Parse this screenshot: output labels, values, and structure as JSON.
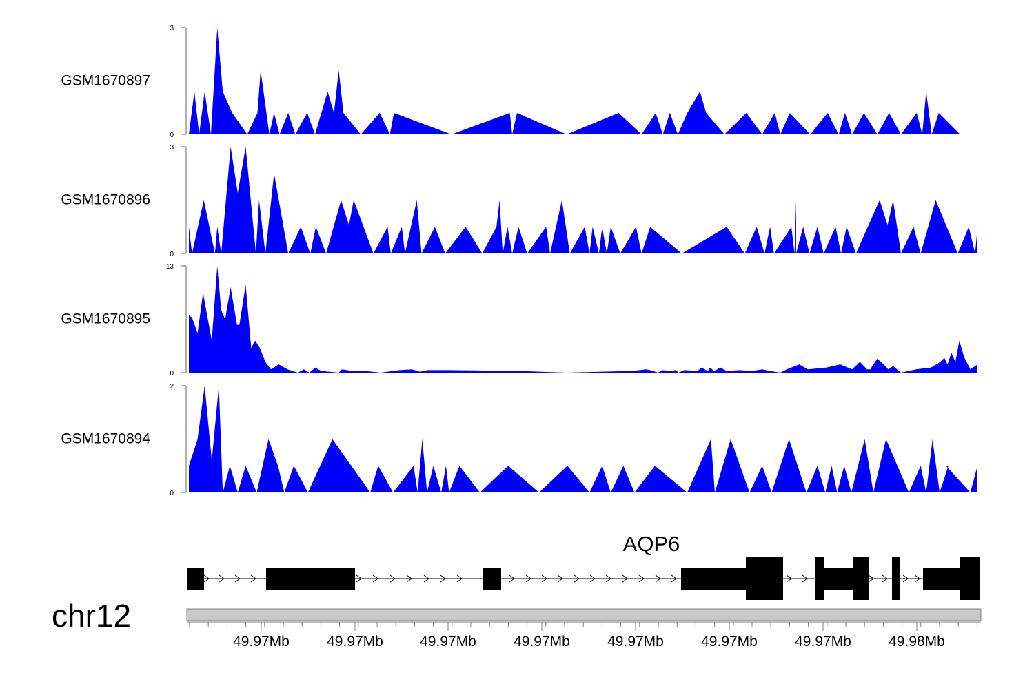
{
  "chart_data": {
    "type": "area",
    "genome": {
      "chromosome": "chr12",
      "gene": "AQP6",
      "strand": "+",
      "x_range_mb": [
        49.9618,
        49.9787
      ],
      "axis_tick_labels": [
        "49.97Mb",
        "49.97Mb",
        "49.97Mb",
        "49.97Mb",
        "49.97Mb",
        "49.97Mb",
        "49.97Mb",
        "49.98Mb"
      ]
    },
    "colors": {
      "fill": "#0000ff",
      "gene": "#000000",
      "ideogram": "#c8c8c8"
    },
    "tracks": [
      {
        "name": "GSM1670897",
        "ylim": [
          0,
          3
        ],
        "yticks": [
          "0",
          "3"
        ],
        "points": [
          [
            0,
            0
          ],
          [
            0.007,
            1.2
          ],
          [
            0.013,
            0
          ],
          [
            0.02,
            1.2
          ],
          [
            0.028,
            0
          ],
          [
            0.036,
            3
          ],
          [
            0.043,
            1.2
          ],
          [
            0.055,
            0.6
          ],
          [
            0.074,
            0
          ],
          [
            0.087,
            0.6
          ],
          [
            0.091,
            1.8
          ],
          [
            0.102,
            0
          ],
          [
            0.108,
            0.6
          ],
          [
            0.115,
            0
          ],
          [
            0.126,
            0.6
          ],
          [
            0.135,
            0
          ],
          [
            0.15,
            0.6
          ],
          [
            0.16,
            0
          ],
          [
            0.176,
            1.2
          ],
          [
            0.184,
            0.6
          ],
          [
            0.19,
            1.8
          ],
          [
            0.196,
            0.6
          ],
          [
            0.218,
            0
          ],
          [
            0.242,
            0.6
          ],
          [
            0.255,
            0
          ],
          [
            0.26,
            0.6
          ],
          [
            0.333,
            0
          ],
          [
            0.407,
            0.6
          ],
          [
            0.41,
            0
          ],
          [
            0.416,
            0.6
          ],
          [
            0.479,
            0
          ],
          [
            0.545,
            0.6
          ],
          [
            0.574,
            0
          ],
          [
            0.592,
            0.6
          ],
          [
            0.601,
            0
          ],
          [
            0.61,
            0.6
          ],
          [
            0.62,
            0
          ],
          [
            0.632,
            0.6
          ],
          [
            0.648,
            1.2
          ],
          [
            0.656,
            0.6
          ],
          [
            0.679,
            0
          ],
          [
            0.707,
            0.6
          ],
          [
            0.727,
            0
          ],
          [
            0.743,
            0.6
          ],
          [
            0.75,
            0
          ],
          [
            0.762,
            0.6
          ],
          [
            0.788,
            0
          ],
          [
            0.81,
            0.6
          ],
          [
            0.824,
            0
          ],
          [
            0.832,
            0.6
          ],
          [
            0.841,
            0
          ],
          [
            0.856,
            0.6
          ],
          [
            0.873,
            0
          ],
          [
            0.888,
            0.6
          ],
          [
            0.903,
            0
          ],
          [
            0.923,
            0.6
          ],
          [
            0.93,
            0
          ],
          [
            0.935,
            1.2
          ],
          [
            0.942,
            0
          ],
          [
            0.951,
            0.6
          ],
          [
            0.978,
            0
          ]
        ]
      },
      {
        "name": "GSM1670896",
        "ylim": [
          0,
          3
        ],
        "yticks": [
          "0",
          "3"
        ],
        "points": [
          [
            0,
            0.75
          ],
          [
            0.004,
            0
          ],
          [
            0.019,
            1.5
          ],
          [
            0.033,
            0
          ],
          [
            0.036,
            0.75
          ],
          [
            0.041,
            0
          ],
          [
            0.053,
            3
          ],
          [
            0.062,
            1.7
          ],
          [
            0.072,
            3
          ],
          [
            0.085,
            0
          ],
          [
            0.089,
            1.5
          ],
          [
            0.097,
            0
          ],
          [
            0.108,
            2.25
          ],
          [
            0.126,
            0
          ],
          [
            0.142,
            0.75
          ],
          [
            0.154,
            0
          ],
          [
            0.161,
            0.75
          ],
          [
            0.174,
            0
          ],
          [
            0.193,
            1.5
          ],
          [
            0.203,
            0.8
          ],
          [
            0.209,
            1.5
          ],
          [
            0.234,
            0
          ],
          [
            0.252,
            0.75
          ],
          [
            0.256,
            0
          ],
          [
            0.27,
            0.75
          ],
          [
            0.274,
            0
          ],
          [
            0.289,
            1.5
          ],
          [
            0.295,
            0
          ],
          [
            0.312,
            0.75
          ],
          [
            0.325,
            0
          ],
          [
            0.351,
            0.75
          ],
          [
            0.372,
            0
          ],
          [
            0.39,
            0.75
          ],
          [
            0.394,
            1.5
          ],
          [
            0.398,
            0
          ],
          [
            0.404,
            0.75
          ],
          [
            0.41,
            0
          ],
          [
            0.418,
            0.75
          ],
          [
            0.429,
            0
          ],
          [
            0.453,
            0.75
          ],
          [
            0.458,
            0
          ],
          [
            0.473,
            1.5
          ],
          [
            0.483,
            0
          ],
          [
            0.502,
            0.75
          ],
          [
            0.508,
            0
          ],
          [
            0.512,
            0.75
          ],
          [
            0.52,
            0
          ],
          [
            0.524,
            0.75
          ],
          [
            0.53,
            0
          ],
          [
            0.535,
            0.75
          ],
          [
            0.547,
            0
          ],
          [
            0.567,
            0.75
          ],
          [
            0.574,
            0
          ],
          [
            0.585,
            0.75
          ],
          [
            0.625,
            0
          ],
          [
            0.682,
            0.75
          ],
          [
            0.705,
            0
          ],
          [
            0.72,
            0.75
          ],
          [
            0.73,
            0
          ],
          [
            0.737,
            0.75
          ],
          [
            0.742,
            0
          ],
          [
            0.764,
            0.75
          ],
          [
            0.768,
            0
          ],
          [
            0.77,
            1.5
          ],
          [
            0.77,
            0
          ],
          [
            0.779,
            0.75
          ],
          [
            0.787,
            0
          ],
          [
            0.797,
            0.75
          ],
          [
            0.805,
            0
          ],
          [
            0.82,
            0.75
          ],
          [
            0.827,
            0
          ],
          [
            0.834,
            0.75
          ],
          [
            0.846,
            0
          ],
          [
            0.876,
            1.5
          ],
          [
            0.886,
            0.8
          ],
          [
            0.893,
            1.5
          ],
          [
            0.903,
            0
          ],
          [
            0.919,
            0.75
          ],
          [
            0.928,
            0
          ],
          [
            0.947,
            1.5
          ],
          [
            0.975,
            0
          ],
          [
            0.989,
            0.75
          ],
          [
            0.997,
            0
          ],
          [
            1,
            0.75
          ],
          [
            1,
            0
          ]
        ]
      },
      {
        "name": "GSM1670895",
        "ylim": [
          0,
          13
        ],
        "yticks": [
          "0",
          "13"
        ],
        "points": [
          [
            0,
            7
          ],
          [
            0.004,
            6.7
          ],
          [
            0.011,
            4.8
          ],
          [
            0.018,
            9.7
          ],
          [
            0.029,
            3.9
          ],
          [
            0.036,
            13
          ],
          [
            0.041,
            7.6
          ],
          [
            0.046,
            6.5
          ],
          [
            0.053,
            10.4
          ],
          [
            0.061,
            5.8
          ],
          [
            0.064,
            5.8
          ],
          [
            0.072,
            10.7
          ],
          [
            0.079,
            3
          ],
          [
            0.084,
            3.9
          ],
          [
            0.09,
            3
          ],
          [
            0.097,
            1.3
          ],
          [
            0.104,
            0.4
          ],
          [
            0.114,
            1
          ],
          [
            0.125,
            0.4
          ],
          [
            0.138,
            0
          ],
          [
            0.146,
            0.4
          ],
          [
            0.153,
            0
          ],
          [
            0.16,
            0.6
          ],
          [
            0.168,
            0.2
          ],
          [
            0.19,
            0
          ],
          [
            0.194,
            0.4
          ],
          [
            0.207,
            0.2
          ],
          [
            0.224,
            0.2
          ],
          [
            0.243,
            0
          ],
          [
            0.267,
            0.3
          ],
          [
            0.283,
            0.4
          ],
          [
            0.293,
            0.1
          ],
          [
            0.303,
            0.3
          ],
          [
            0.331,
            0.3
          ],
          [
            0.419,
            0.2
          ],
          [
            0.478,
            0
          ],
          [
            0.562,
            0.2
          ],
          [
            0.58,
            0.4
          ],
          [
            0.585,
            0.3
          ],
          [
            0.595,
            0
          ],
          [
            0.6,
            0.3
          ],
          [
            0.611,
            0.2
          ],
          [
            0.617,
            0.3
          ],
          [
            0.621,
            0
          ],
          [
            0.628,
            0.3
          ],
          [
            0.645,
            0.2
          ],
          [
            0.65,
            0.6
          ],
          [
            0.658,
            0.2
          ],
          [
            0.661,
            0.6
          ],
          [
            0.666,
            0.2
          ],
          [
            0.674,
            0.6
          ],
          [
            0.682,
            0.2
          ],
          [
            0.698,
            0.3
          ],
          [
            0.714,
            0.2
          ],
          [
            0.727,
            0.4
          ],
          [
            0.737,
            0.2
          ],
          [
            0.75,
            0
          ],
          [
            0.758,
            0.4
          ],
          [
            0.774,
            1
          ],
          [
            0.785,
            0.4
          ],
          [
            0.808,
            0.6
          ],
          [
            0.826,
            1
          ],
          [
            0.841,
            0.4
          ],
          [
            0.851,
            1.3
          ],
          [
            0.86,
            0.4
          ],
          [
            0.864,
            0.4
          ],
          [
            0.873,
            1.7
          ],
          [
            0.881,
            1
          ],
          [
            0.887,
            0.4
          ],
          [
            0.893,
            0.8
          ],
          [
            0.903,
            0
          ],
          [
            0.922,
            0.4
          ],
          [
            0.941,
            0.6
          ],
          [
            0.953,
            1.3
          ],
          [
            0.958,
            1.8
          ],
          [
            0.962,
            1
          ],
          [
            0.967,
            2.4
          ],
          [
            0.972,
            1.3
          ],
          [
            0.977,
            3.9
          ],
          [
            0.983,
            1.9
          ],
          [
            0.991,
            0.4
          ],
          [
            1,
            1
          ]
        ]
      },
      {
        "name": "GSM1670894",
        "ylim": [
          0,
          2
        ],
        "yticks": [
          "0",
          "2"
        ],
        "points": [
          [
            0,
            0.5
          ],
          [
            0.011,
            1
          ],
          [
            0.02,
            2
          ],
          [
            0.029,
            0.6
          ],
          [
            0.038,
            2
          ],
          [
            0.043,
            0
          ],
          [
            0.052,
            0.5
          ],
          [
            0.062,
            0
          ],
          [
            0.072,
            0.5
          ],
          [
            0.086,
            0
          ],
          [
            0.101,
            1
          ],
          [
            0.113,
            0.5
          ],
          [
            0.121,
            0
          ],
          [
            0.133,
            0.5
          ],
          [
            0.151,
            0
          ],
          [
            0.182,
            1
          ],
          [
            0.23,
            0
          ],
          [
            0.24,
            0.5
          ],
          [
            0.259,
            0
          ],
          [
            0.285,
            0.5
          ],
          [
            0.29,
            0
          ],
          [
            0.296,
            1
          ],
          [
            0.302,
            0
          ],
          [
            0.31,
            0.5
          ],
          [
            0.32,
            0
          ],
          [
            0.326,
            0.5
          ],
          [
            0.33,
            0
          ],
          [
            0.343,
            0.5
          ],
          [
            0.369,
            0
          ],
          [
            0.405,
            0.5
          ],
          [
            0.444,
            0
          ],
          [
            0.48,
            0.5
          ],
          [
            0.508,
            0
          ],
          [
            0.524,
            0.5
          ],
          [
            0.535,
            0
          ],
          [
            0.551,
            0.5
          ],
          [
            0.565,
            0
          ],
          [
            0.591,
            0.5
          ],
          [
            0.632,
            0
          ],
          [
            0.662,
            1
          ],
          [
            0.667,
            0
          ],
          [
            0.687,
            1
          ],
          [
            0.711,
            0
          ],
          [
            0.727,
            0.5
          ],
          [
            0.739,
            0
          ],
          [
            0.761,
            1
          ],
          [
            0.783,
            0
          ],
          [
            0.797,
            0.5
          ],
          [
            0.807,
            0
          ],
          [
            0.815,
            0.5
          ],
          [
            0.822,
            0
          ],
          [
            0.831,
            0.5
          ],
          [
            0.84,
            0
          ],
          [
            0.857,
            1
          ],
          [
            0.868,
            0
          ],
          [
            0.884,
            1
          ],
          [
            0.913,
            0
          ],
          [
            0.928,
            0.5
          ],
          [
            0.935,
            0
          ],
          [
            0.943,
            1
          ],
          [
            0.952,
            0
          ],
          [
            0.963,
            0.5
          ],
          [
            0.96,
            0.5
          ],
          [
            0.991,
            0
          ],
          [
            1,
            0.5
          ],
          [
            1,
            0
          ]
        ]
      }
    ]
  }
}
